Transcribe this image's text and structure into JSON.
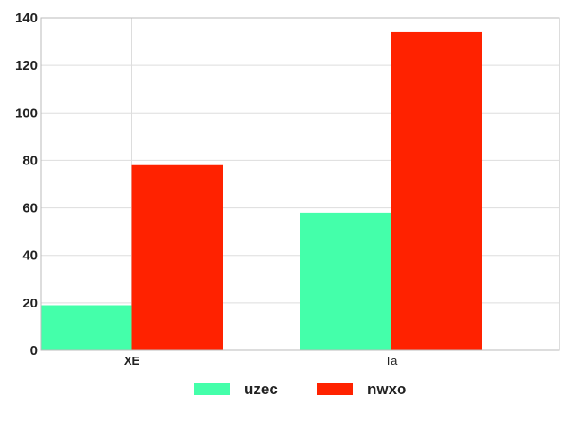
{
  "chart_data": {
    "type": "bar",
    "categories": [
      "XE",
      "Ta"
    ],
    "series": [
      {
        "name": "uzec",
        "values": [
          19,
          58
        ],
        "color": "#44ffaa"
      },
      {
        "name": "nwxo",
        "values": [
          78,
          134
        ],
        "color": "#ff2200"
      }
    ],
    "title": "",
    "xlabel": "",
    "ylabel": "",
    "ylim": [
      0,
      140
    ],
    "yticks": [
      "0",
      "20",
      "40",
      "60",
      "80",
      "100",
      "120",
      "140"
    ],
    "grid": true,
    "legend_position": "bottom"
  }
}
